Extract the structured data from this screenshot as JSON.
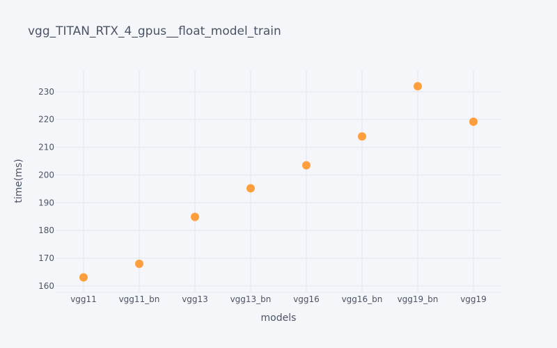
{
  "chart_data": {
    "type": "scatter",
    "title": "vgg_TITAN_RTX_4_gpus__float_model_train",
    "xlabel": "models",
    "ylabel": "time(ms)",
    "categories": [
      "vgg11",
      "vgg11_bn",
      "vgg13",
      "vgg13_bn",
      "vgg16",
      "vgg16_bn",
      "vgg19_bn",
      "vgg19"
    ],
    "values": [
      163.1,
      168.0,
      184.9,
      195.2,
      203.5,
      213.9,
      232.0,
      219.2
    ],
    "ylim": [
      157.7,
      238.0
    ],
    "yticks": [
      160,
      170,
      180,
      190,
      200,
      210,
      220,
      230
    ],
    "grid": true,
    "legend": "none",
    "marker_color": "#ff9933"
  }
}
